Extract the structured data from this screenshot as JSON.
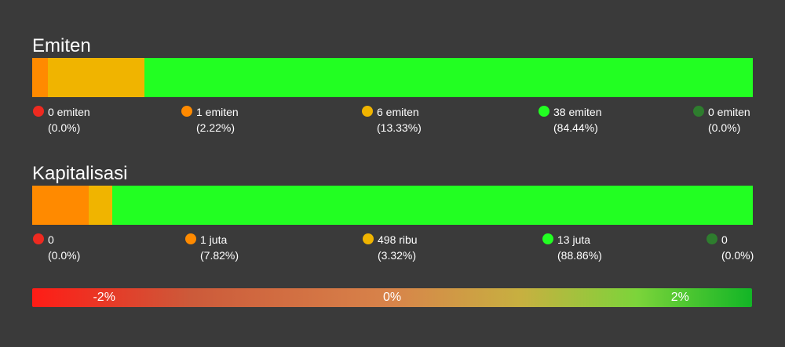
{
  "colors": {
    "background": "#3a3a3a",
    "red": "#ee2a20",
    "orange": "#ff8a00",
    "yellow": "#f0b400",
    "green": "#22ff22",
    "dark_green": "#2e7d2e"
  },
  "chart_data": [
    {
      "type": "bar",
      "title": "Emiten",
      "orientation": "horizontal-stacked",
      "segments": [
        {
          "color_key": "red",
          "count": "0 emiten",
          "percent": 0.0,
          "percent_label": "(0.0%)"
        },
        {
          "color_key": "orange",
          "count": "1 emiten",
          "percent": 2.22,
          "percent_label": "(2.22%)"
        },
        {
          "color_key": "yellow",
          "count": "6 emiten",
          "percent": 13.33,
          "percent_label": "(13.33%)"
        },
        {
          "color_key": "green",
          "count": "38 emiten",
          "percent": 84.44,
          "percent_label": "(84.44%)"
        },
        {
          "color_key": "dark_green",
          "count": "0 emiten",
          "percent": 0.0,
          "percent_label": "(0.0%)"
        }
      ]
    },
    {
      "type": "bar",
      "title": "Kapitalisasi",
      "orientation": "horizontal-stacked",
      "segments": [
        {
          "color_key": "red",
          "count": "0",
          "percent": 0.0,
          "percent_label": "(0.0%)"
        },
        {
          "color_key": "orange",
          "count": "1 juta",
          "percent": 7.82,
          "percent_label": "(7.82%)"
        },
        {
          "color_key": "yellow",
          "count": "498 ribu",
          "percent": 3.32,
          "percent_label": "(3.32%)"
        },
        {
          "color_key": "green",
          "count": "13 juta",
          "percent": 88.86,
          "percent_label": "(88.86%)"
        },
        {
          "color_key": "dark_green",
          "count": "0",
          "percent": 0.0,
          "percent_label": "(0.0%)"
        }
      ]
    }
  ],
  "scale": {
    "labels": [
      "-2%",
      "0%",
      "2%"
    ],
    "values": [
      -2,
      0,
      2
    ],
    "range": [
      -2.5,
      2.5
    ]
  }
}
